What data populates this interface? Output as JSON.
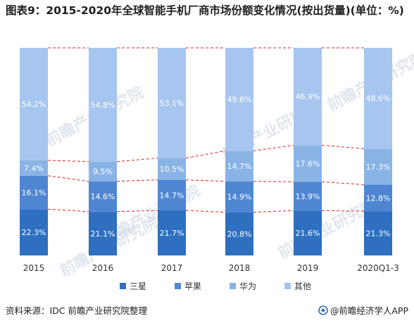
{
  "title": "图表9：2015-2020年全球智能手机厂商市场份额变化情况(按出货量)(单位：%)",
  "source": "资料来源：IDC 前瞻产业研究院整理",
  "brand": "@前瞻经济学人APP",
  "watermark": "前瞻产业研究院",
  "colors": {
    "三星": "#2e6fc0",
    "苹果": "#4f86d2",
    "华为": "#8ab3e5",
    "其他": "#a6c6ef",
    "connector": "#e02020"
  },
  "chart_data": {
    "type": "bar",
    "stacked": true,
    "categories": [
      "2015",
      "2016",
      "2017",
      "2018",
      "2019",
      "2020Q1-3"
    ],
    "series": [
      {
        "name": "三星",
        "values": [
          22.3,
          21.1,
          21.7,
          20.8,
          21.6,
          21.3
        ]
      },
      {
        "name": "苹果",
        "values": [
          16.1,
          14.6,
          14.7,
          14.9,
          13.9,
          12.8
        ]
      },
      {
        "name": "华为",
        "values": [
          7.4,
          9.5,
          10.5,
          14.7,
          17.6,
          17.3
        ]
      },
      {
        "name": "其他",
        "values": [
          54.2,
          54.8,
          53.1,
          49.6,
          46.9,
          48.6
        ]
      }
    ],
    "value_suffix": "%",
    "ylim": [
      0,
      100
    ],
    "legend_position": "bottom",
    "connectors": "dashed red lines joining segment boundaries between adjacent bars"
  }
}
